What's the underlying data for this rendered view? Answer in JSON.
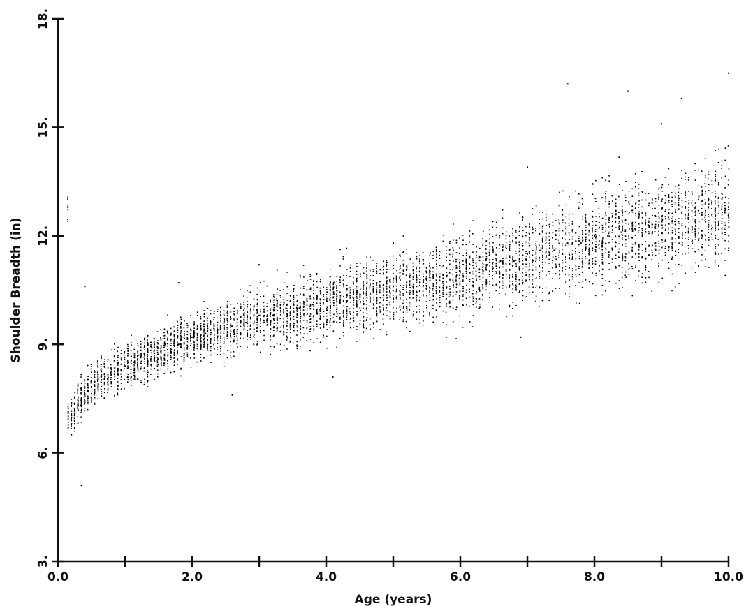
{
  "chart_data": {
    "type": "scatter",
    "title": "",
    "xlabel": "Age (years)",
    "ylabel": "Shoulder Breadth (in)",
    "xlim": [
      0.0,
      10.0
    ],
    "ylim": [
      3.0,
      18.0
    ],
    "x_ticks": [
      0.0,
      2.0,
      4.0,
      6.0,
      8.0,
      10.0
    ],
    "x_tick_labels": [
      "0.0",
      "2.0",
      "4.0",
      "6.0",
      "8.0",
      "10.0"
    ],
    "x_minor_ticks": [
      1.0,
      3.0,
      5.0,
      7.0,
      9.0
    ],
    "y_ticks": [
      3.0,
      6.0,
      9.0,
      12.0,
      15.0,
      18.0
    ],
    "y_tick_labels": [
      "3.",
      "6.",
      "9.",
      "12.",
      "15.",
      "18."
    ],
    "grid": false,
    "legend": "none",
    "marker_color": "#000000",
    "series": [
      {
        "x": [
          0.15,
          0.2,
          0.25,
          0.3,
          0.35,
          0.4,
          0.45,
          0.5,
          0.6,
          0.7,
          0.8,
          0.9,
          1.0,
          1.2,
          1.4,
          1.6,
          1.8,
          2.0,
          2.2,
          2.4,
          2.6,
          2.8,
          3.0,
          3.2,
          3.4,
          3.6,
          3.8,
          4.0,
          4.2,
          4.4,
          4.6,
          4.8,
          5.0,
          5.2,
          5.4,
          5.6,
          5.8,
          6.0,
          6.2,
          6.4,
          6.6,
          6.8,
          7.0,
          7.2,
          7.4,
          7.6,
          7.8,
          8.0,
          8.2,
          8.4,
          8.6,
          8.8,
          9.0,
          9.2,
          9.4,
          9.6,
          9.8,
          10.0,
          0.35,
          2.6,
          4.1,
          6.9,
          7.6,
          8.5,
          9.3,
          10.0,
          0.4,
          1.8,
          3.0,
          5.0,
          7.0,
          9.0
        ],
        "y": [
          7.1,
          6.5,
          6.9,
          7.3,
          7.5,
          7.6,
          7.8,
          8.0,
          7.9,
          8.1,
          8.3,
          8.5,
          8.4,
          8.7,
          8.9,
          9.0,
          9.0,
          9.2,
          9.3,
          9.4,
          9.5,
          9.6,
          9.8,
          9.8,
          10.0,
          10.0,
          10.1,
          10.2,
          10.2,
          10.3,
          10.4,
          10.5,
          10.6,
          10.7,
          10.8,
          10.9,
          10.9,
          11.0,
          11.1,
          11.2,
          11.3,
          11.3,
          11.5,
          11.6,
          11.6,
          11.8,
          11.8,
          12.0,
          12.0,
          12.1,
          12.2,
          12.3,
          12.4,
          12.4,
          12.5,
          12.6,
          12.7,
          12.8,
          5.1,
          7.6,
          8.1,
          9.2,
          16.2,
          16.0,
          15.8,
          16.5,
          10.6,
          10.7,
          11.2,
          11.8,
          13.9,
          15.1
        ]
      }
    ],
    "trend": {
      "note_x": [
        0.15,
        0.5,
        1.0,
        2.0,
        3.0,
        4.0,
        5.0,
        6.0,
        7.0,
        8.0,
        9.0,
        10.0
      ],
      "mean_y": [
        6.9,
        7.9,
        8.4,
        9.2,
        9.7,
        10.1,
        10.5,
        10.9,
        11.4,
        11.9,
        12.3,
        12.7
      ]
    }
  }
}
